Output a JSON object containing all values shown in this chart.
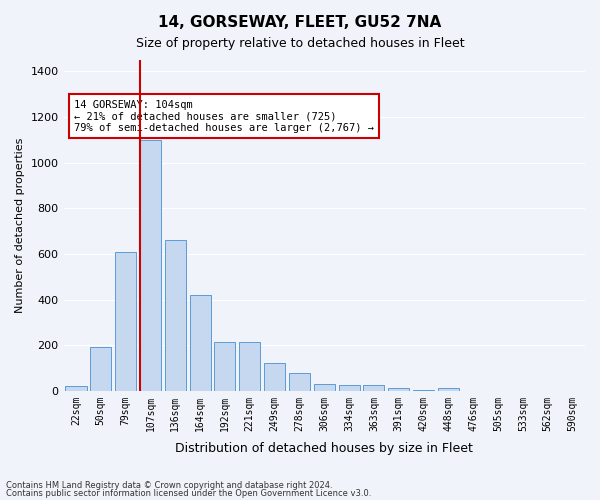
{
  "title1": "14, GORSEWAY, FLEET, GU52 7NA",
  "title2": "Size of property relative to detached houses in Fleet",
  "xlabel": "Distribution of detached houses by size in Fleet",
  "ylabel": "Number of detached properties",
  "bar_color": "#c5d8f0",
  "bar_edge_color": "#5b9bd5",
  "categories": [
    "22sqm",
    "50sqm",
    "79sqm",
    "107sqm",
    "136sqm",
    "164sqm",
    "192sqm",
    "221sqm",
    "249sqm",
    "278sqm",
    "306sqm",
    "334sqm",
    "363sqm",
    "391sqm",
    "420sqm",
    "448sqm",
    "476sqm",
    "505sqm",
    "533sqm",
    "562sqm",
    "590sqm"
  ],
  "values": [
    20,
    190,
    610,
    1100,
    660,
    420,
    215,
    215,
    120,
    80,
    30,
    25,
    25,
    10,
    5,
    10,
    0,
    0,
    0,
    0,
    0
  ],
  "ylim": [
    0,
    1450
  ],
  "yticks": [
    0,
    200,
    400,
    600,
    800,
    1000,
    1200,
    1400
  ],
  "red_line_index": 3,
  "annotation_text": "14 GORSEWAY: 104sqm\n← 21% of detached houses are smaller (725)\n79% of semi-detached houses are larger (2,767) →",
  "footnote1": "Contains HM Land Registry data © Crown copyright and database right 2024.",
  "footnote2": "Contains public sector information licensed under the Open Government Licence v3.0.",
  "bg_color": "#f0f4fa",
  "grid_color": "#ffffff",
  "annotation_box_color": "#ffffff",
  "annotation_box_edge": "#cc0000",
  "red_line_color": "#cc0000"
}
